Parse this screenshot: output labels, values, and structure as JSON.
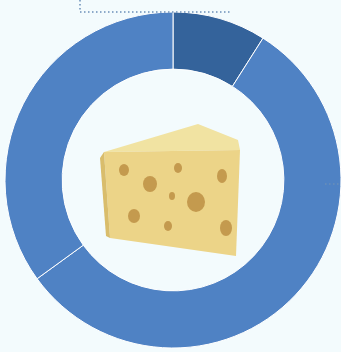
{
  "chart_data": {
    "type": "donut",
    "values": [
      9,
      56,
      35
    ],
    "colors": [
      "#34639b",
      "#4f82c4",
      "#4f82c4"
    ]
  }
}
